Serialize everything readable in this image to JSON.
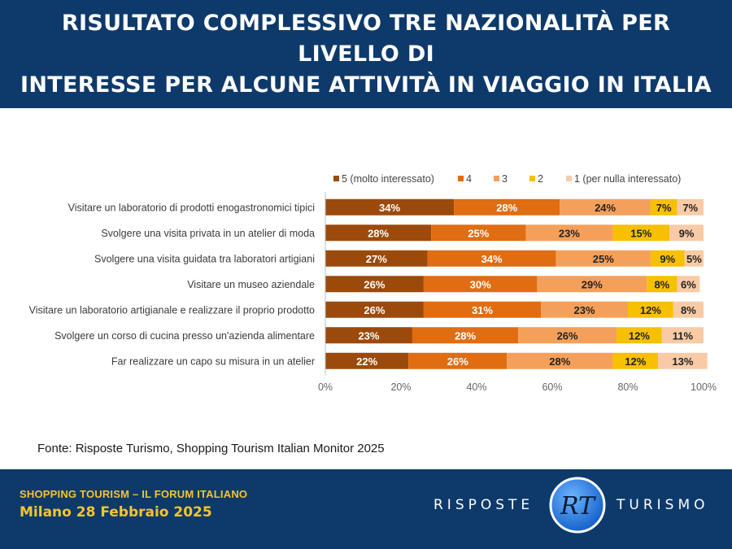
{
  "header": {
    "title_line1": "RISULTATO COMPLESSIVO TRE NAZIONALITÀ PER LIVELLO DI",
    "title_line2": "INTERESSE PER ALCUNE ATTIVITÀ IN VIAGGIO IN ITALIA"
  },
  "source": "Fonte: Risposte Turismo, Shopping Tourism Italian Monitor 2025",
  "footer": {
    "event_name": "SHOPPING TOURISM – IL FORUM ITALIANO",
    "event_date": "Milano 28 Febbraio 2025",
    "logo_left": "RISPOSTE",
    "logo_right": "TURISMO",
    "logo_mark": "RT"
  },
  "colors": {
    "header_bg": "#0e3a6b",
    "accent_yellow": "#f2c530",
    "series": [
      "#9c4a0c",
      "#e06d12",
      "#f5a05a",
      "#f7c000",
      "#f8cba6"
    ]
  },
  "chart_data": {
    "type": "bar",
    "orientation": "horizontal",
    "stacked": true,
    "categories": [
      "Visitare un laboratorio di prodotti enogastronomici tipici",
      "Svolgere una visita privata in un atelier di moda",
      "Svolgere una visita guidata tra laboratori artigiani",
      "Visitare un museo aziendale",
      "Visitare un laboratorio artigianale e realizzare il proprio prodotto",
      "Svolgere un corso di cucina presso un'azienda alimentare",
      "Far realizzare un capo su misura in un atelier"
    ],
    "series": [
      {
        "name": "5 (molto interessato)",
        "values": [
          34,
          28,
          27,
          26,
          26,
          23,
          22
        ]
      },
      {
        "name": "4",
        "values": [
          28,
          25,
          34,
          30,
          31,
          28,
          26
        ]
      },
      {
        "name": "3",
        "values": [
          24,
          23,
          25,
          29,
          23,
          26,
          28
        ]
      },
      {
        "name": "2",
        "values": [
          7,
          15,
          9,
          8,
          12,
          12,
          12
        ]
      },
      {
        "name": "1 (per nulla interessato)",
        "values": [
          7,
          9,
          5,
          6,
          8,
          11,
          13
        ]
      }
    ],
    "xlim": [
      0,
      100
    ],
    "xticks": [
      "0%",
      "20%",
      "40%",
      "60%",
      "80%",
      "100%"
    ],
    "value_suffix": "%",
    "legend_position": "top",
    "grid": false
  }
}
